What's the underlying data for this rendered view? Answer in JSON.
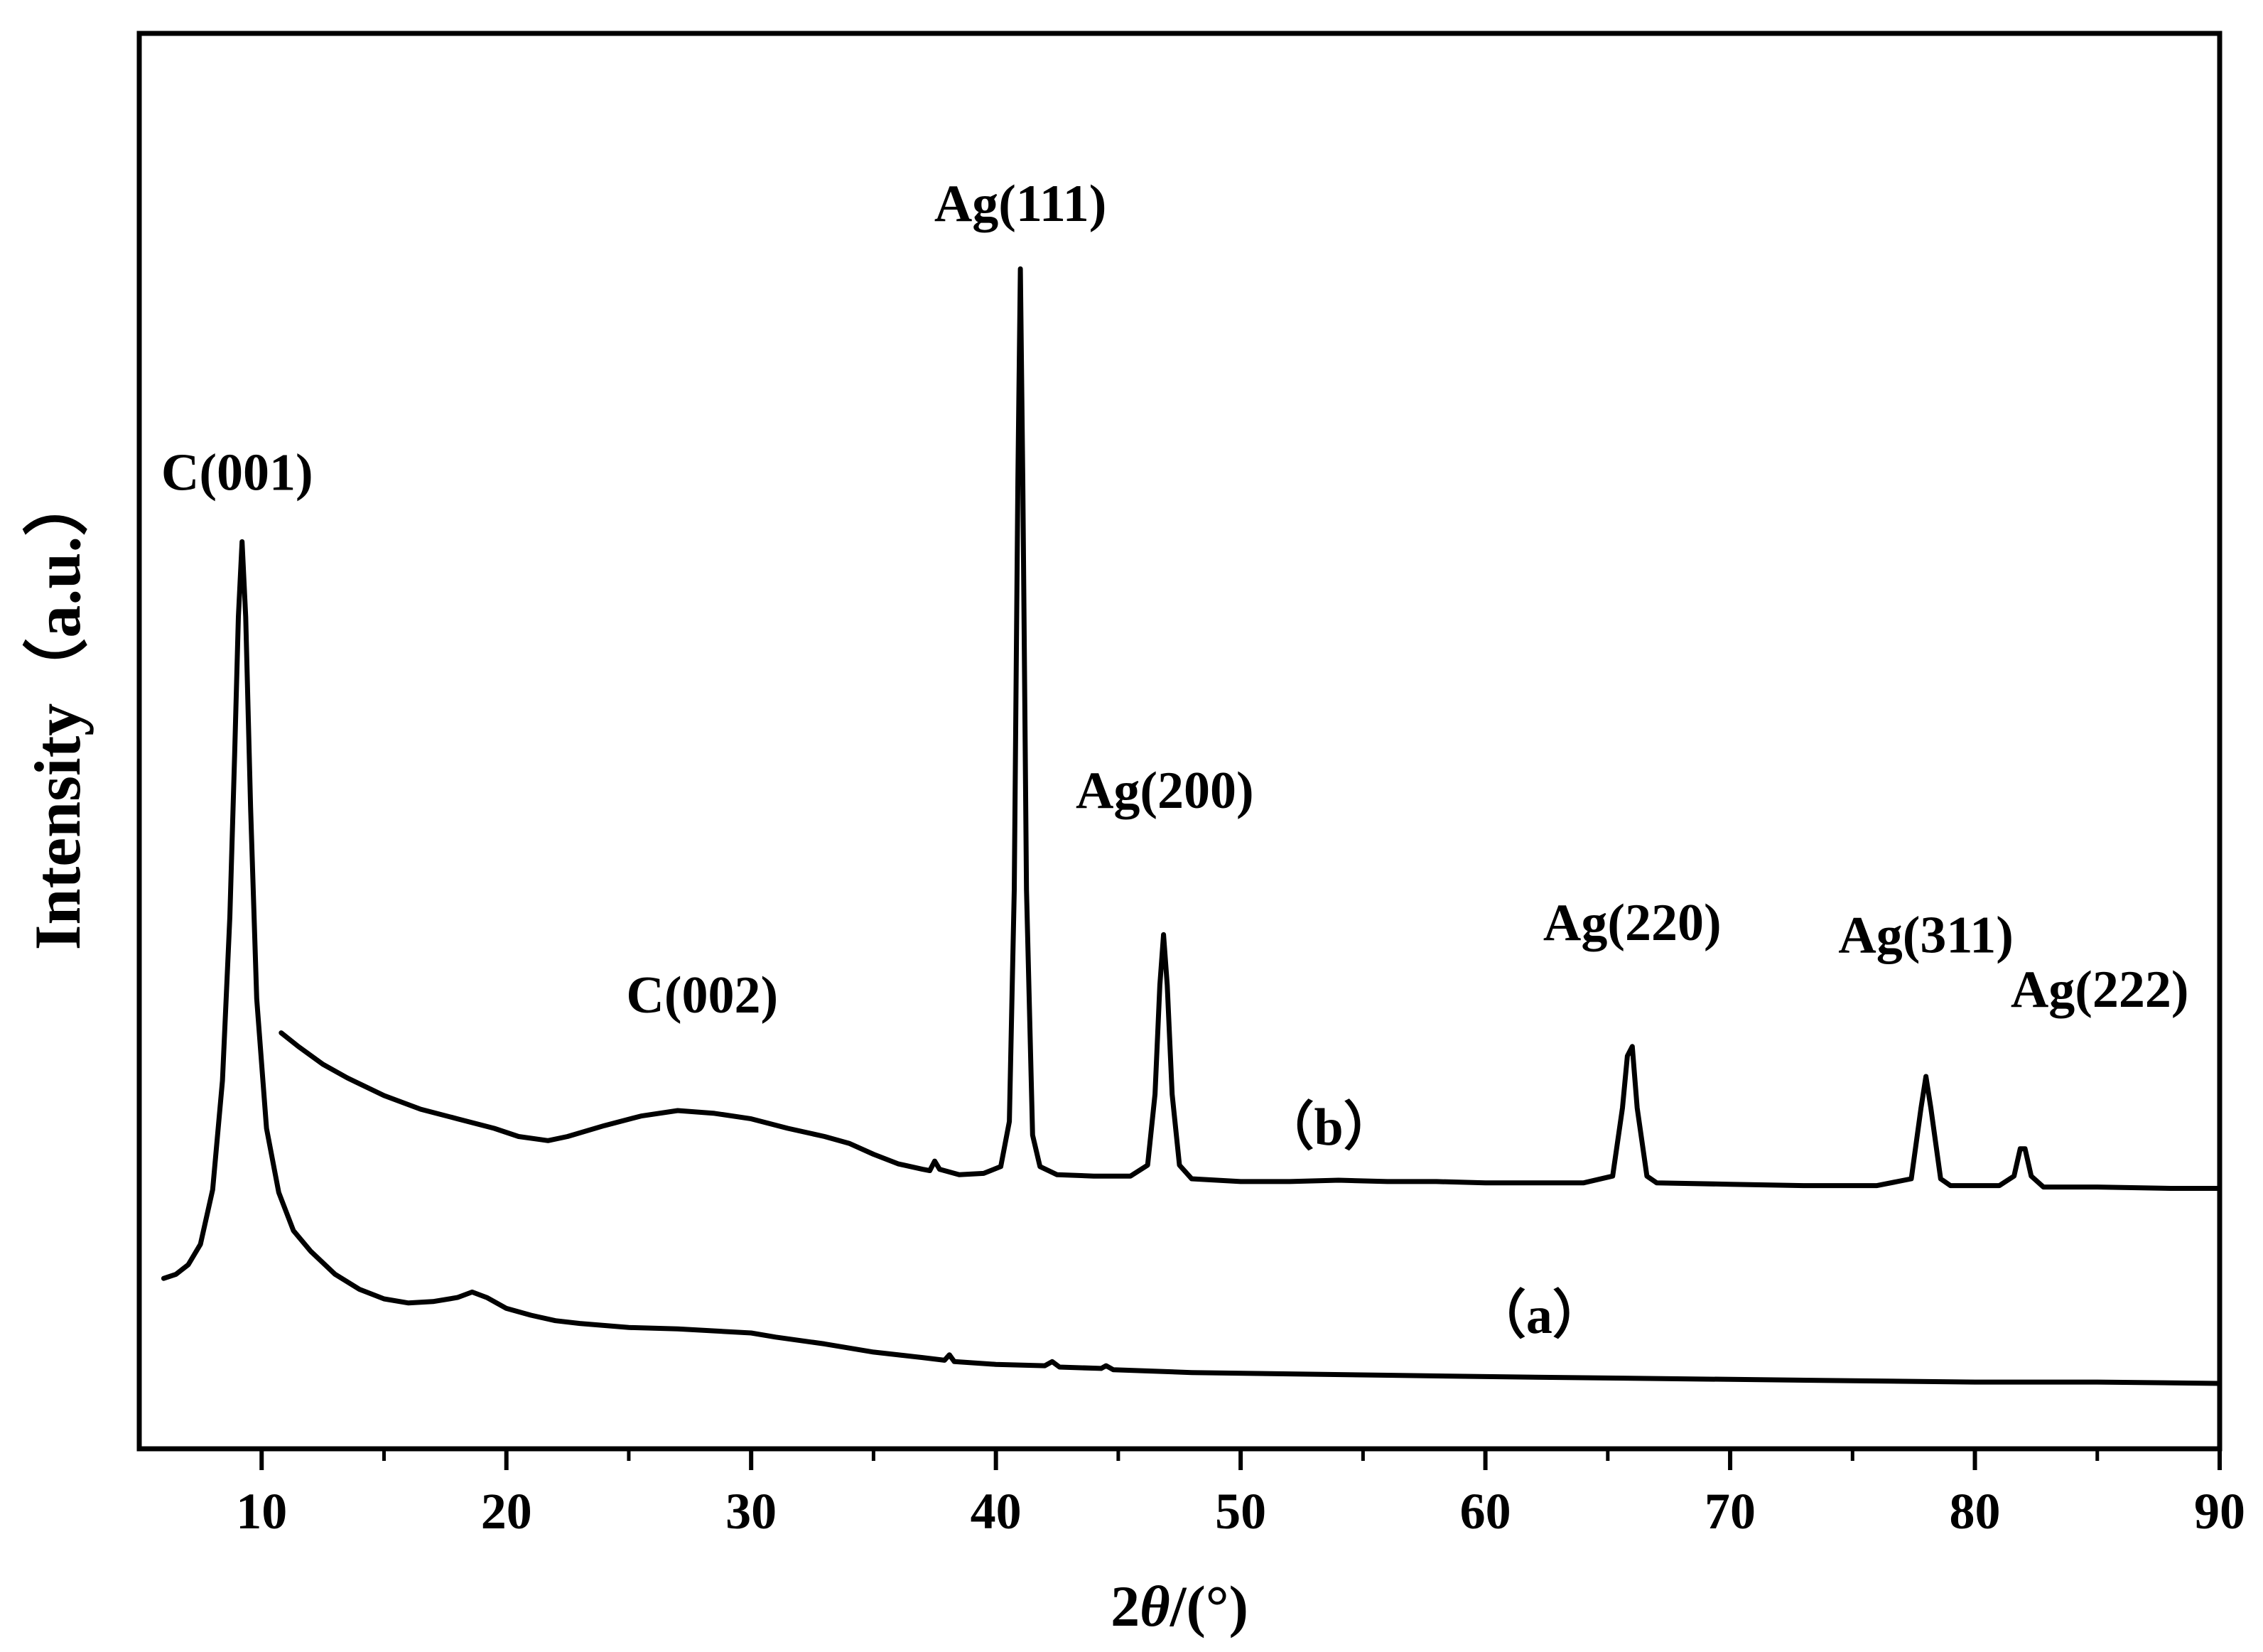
{
  "chart_data": {
    "type": "line",
    "title": "",
    "xlabel_prefix": "2",
    "xlabel_symbol": "θ",
    "xlabel_suffix": "/(°)",
    "ylabel": "Intensity（a.u.）",
    "xlim": [
      5,
      90
    ],
    "ylim": [
      0,
      1
    ],
    "x_ticks": [
      10,
      20,
      30,
      40,
      50,
      60,
      70,
      80,
      90
    ],
    "x_minor_ticks": [
      15,
      25,
      35,
      45,
      55,
      65,
      75,
      85
    ],
    "y_ticks_shown": false,
    "grid": false,
    "line_color": "#000000",
    "series": [
      {
        "name": "（a）",
        "label_at": [
          62.2,
          0.075
        ],
        "points": [
          [
            6.0,
            0.115
          ],
          [
            6.5,
            0.118
          ],
          [
            7.0,
            0.125
          ],
          [
            7.5,
            0.14
          ],
          [
            8.0,
            0.18
          ],
          [
            8.4,
            0.26
          ],
          [
            8.7,
            0.38
          ],
          [
            8.9,
            0.5
          ],
          [
            9.05,
            0.6
          ],
          [
            9.2,
            0.655
          ],
          [
            9.35,
            0.6
          ],
          [
            9.55,
            0.46
          ],
          [
            9.8,
            0.32
          ],
          [
            10.2,
            0.225
          ],
          [
            10.7,
            0.178
          ],
          [
            11.3,
            0.15
          ],
          [
            12,
            0.135
          ],
          [
            13,
            0.118
          ],
          [
            14,
            0.107
          ],
          [
            15,
            0.1
          ],
          [
            16,
            0.097
          ],
          [
            17,
            0.098
          ],
          [
            18,
            0.101
          ],
          [
            18.6,
            0.105
          ],
          [
            19.2,
            0.101
          ],
          [
            20,
            0.093
          ],
          [
            21,
            0.088
          ],
          [
            22,
            0.084
          ],
          [
            23,
            0.082
          ],
          [
            25,
            0.079
          ],
          [
            27,
            0.078
          ],
          [
            29,
            0.076
          ],
          [
            30,
            0.075
          ],
          [
            31,
            0.072
          ],
          [
            33,
            0.067
          ],
          [
            35,
            0.061
          ],
          [
            37,
            0.057
          ],
          [
            37.9,
            0.055
          ],
          [
            38.1,
            0.059
          ],
          [
            38.3,
            0.054
          ],
          [
            40,
            0.052
          ],
          [
            42,
            0.051
          ],
          [
            42.3,
            0.054
          ],
          [
            42.6,
            0.05
          ],
          [
            44.3,
            0.049
          ],
          [
            44.5,
            0.051
          ],
          [
            44.8,
            0.048
          ],
          [
            48,
            0.046
          ],
          [
            52,
            0.045
          ],
          [
            56,
            0.044
          ],
          [
            60,
            0.043
          ],
          [
            65,
            0.042
          ],
          [
            70,
            0.041
          ],
          [
            75,
            0.04
          ],
          [
            80,
            0.039
          ],
          [
            85,
            0.039
          ],
          [
            90,
            0.038
          ]
        ]
      },
      {
        "name": "（b）",
        "label_at": [
          53.6,
          0.213
        ],
        "points": [
          [
            10.8,
            0.295
          ],
          [
            11.5,
            0.285
          ],
          [
            12.5,
            0.272
          ],
          [
            13.5,
            0.262
          ],
          [
            15,
            0.249
          ],
          [
            16.5,
            0.239
          ],
          [
            18,
            0.232
          ],
          [
            19.5,
            0.225
          ],
          [
            20.5,
            0.219
          ],
          [
            21.7,
            0.216
          ],
          [
            22.5,
            0.219
          ],
          [
            24,
            0.227
          ],
          [
            25.5,
            0.234
          ],
          [
            27,
            0.238
          ],
          [
            28.5,
            0.236
          ],
          [
            30,
            0.232
          ],
          [
            31.5,
            0.225
          ],
          [
            33,
            0.219
          ],
          [
            34,
            0.214
          ],
          [
            35,
            0.206
          ],
          [
            36,
            0.199
          ],
          [
            37,
            0.195
          ],
          [
            37.3,
            0.194
          ],
          [
            37.5,
            0.201
          ],
          [
            37.7,
            0.195
          ],
          [
            38.5,
            0.191
          ],
          [
            39.5,
            0.192
          ],
          [
            40.2,
            0.197
          ],
          [
            40.55,
            0.23
          ],
          [
            40.75,
            0.4
          ],
          [
            40.9,
            0.7
          ],
          [
            41.0,
            0.855
          ],
          [
            41.1,
            0.7
          ],
          [
            41.25,
            0.4
          ],
          [
            41.5,
            0.22
          ],
          [
            41.8,
            0.197
          ],
          [
            42.5,
            0.191
          ],
          [
            44,
            0.19
          ],
          [
            45.5,
            0.19
          ],
          [
            46.2,
            0.198
          ],
          [
            46.5,
            0.25
          ],
          [
            46.7,
            0.33
          ],
          [
            46.85,
            0.367
          ],
          [
            47.0,
            0.33
          ],
          [
            47.2,
            0.25
          ],
          [
            47.5,
            0.198
          ],
          [
            48,
            0.188
          ],
          [
            50,
            0.186
          ],
          [
            52,
            0.186
          ],
          [
            54,
            0.187
          ],
          [
            56,
            0.186
          ],
          [
            58,
            0.186
          ],
          [
            60,
            0.185
          ],
          [
            62,
            0.185
          ],
          [
            64,
            0.185
          ],
          [
            65.2,
            0.19
          ],
          [
            65.6,
            0.24
          ],
          [
            65.8,
            0.278
          ],
          [
            66.0,
            0.285
          ],
          [
            66.2,
            0.24
          ],
          [
            66.6,
            0.19
          ],
          [
            67,
            0.185
          ],
          [
            70,
            0.184
          ],
          [
            73,
            0.183
          ],
          [
            76,
            0.183
          ],
          [
            77.4,
            0.188
          ],
          [
            77.8,
            0.24
          ],
          [
            78.0,
            0.263
          ],
          [
            78.2,
            0.24
          ],
          [
            78.6,
            0.188
          ],
          [
            79,
            0.183
          ],
          [
            81,
            0.183
          ],
          [
            81.6,
            0.19
          ],
          [
            81.85,
            0.21
          ],
          [
            82.05,
            0.21
          ],
          [
            82.3,
            0.19
          ],
          [
            82.8,
            0.182
          ],
          [
            85,
            0.182
          ],
          [
            88,
            0.181
          ],
          [
            90,
            0.181
          ]
        ]
      }
    ],
    "annotations": [
      {
        "text": "C(001)",
        "x": 9.0,
        "y": 0.693
      },
      {
        "text": "C(002)",
        "x": 28.0,
        "y": 0.31
      },
      {
        "text": "Ag(111)",
        "x": 41.0,
        "y": 0.89
      },
      {
        "text": "Ag(200)",
        "x": 46.9,
        "y": 0.46
      },
      {
        "text": "Ag(220)",
        "x": 66.0,
        "y": 0.363
      },
      {
        "text": "Ag(311)",
        "x": 78.0,
        "y": 0.354
      },
      {
        "text": "Ag(222)",
        "x": 85.1,
        "y": 0.314
      }
    ]
  }
}
